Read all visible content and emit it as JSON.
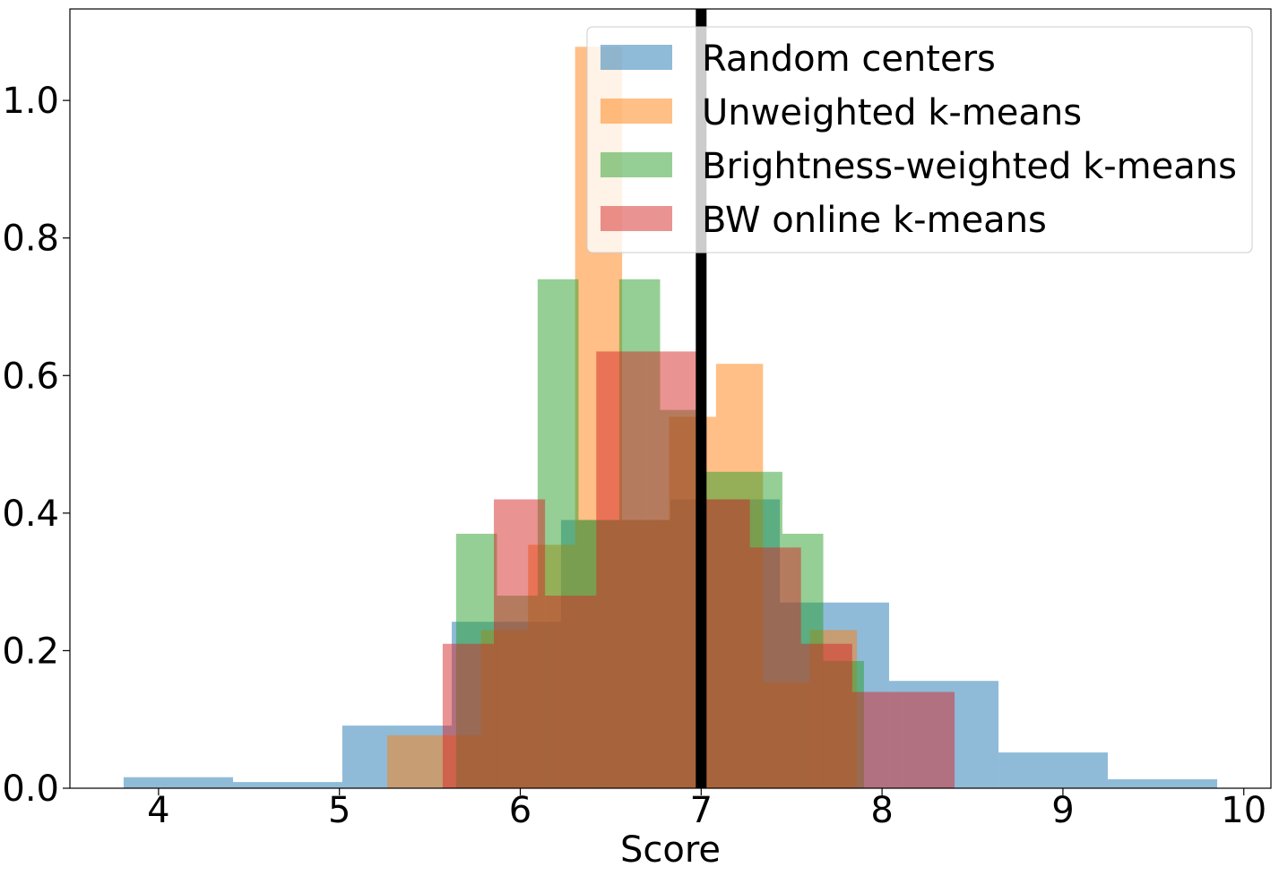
{
  "chart_data": {
    "type": "histogram",
    "xlabel": "Score",
    "xlim": [
      3.51,
      10.15
    ],
    "ylim": [
      0,
      1.133
    ],
    "xticks": [
      4,
      5,
      6,
      7,
      8,
      9,
      10
    ],
    "yticks": [
      {
        "value": 0,
        "label": "0.0"
      },
      {
        "value": 0.2,
        "label": "0.2"
      },
      {
        "value": 0.4,
        "label": "0.4"
      },
      {
        "value": 0.6,
        "label": "0.6"
      },
      {
        "value": 0.8,
        "label": "0.8"
      },
      {
        "value": 1.0,
        "label": "1.0"
      }
    ],
    "alpha": 0.5,
    "vline": 7,
    "vline_color": "#000000",
    "legend": "upper right",
    "series": [
      {
        "name": "Random centers",
        "color": "#1f77b4",
        "bins": [
          3.807,
          4.412,
          5.016,
          5.621,
          6.225,
          6.83,
          7.435,
          8.039,
          8.644,
          9.248,
          9.853
        ],
        "values": [
          0.016,
          0.009,
          0.091,
          0.242,
          0.39,
          0.42,
          0.27,
          0.156,
          0.052,
          0.013
        ]
      },
      {
        "name": "Unweighted k-means",
        "color": "#ff7f0e",
        "bins": [
          5.264,
          5.524,
          5.783,
          6.043,
          6.303,
          6.563,
          6.822,
          7.082,
          7.342,
          7.601,
          7.861
        ],
        "values": [
          0.077,
          0.077,
          0.23,
          0.354,
          1.078,
          0.39,
          0.54,
          0.617,
          0.154,
          0.23
        ]
      },
      {
        "name": "Brightness-weighted k-means",
        "color": "#2ca02c",
        "bins": [
          5.645,
          5.871,
          6.096,
          6.322,
          6.547,
          6.773,
          6.998,
          7.224,
          7.449,
          7.675,
          7.9
        ],
        "values": [
          0.37,
          0.28,
          0.74,
          0.39,
          0.74,
          0.55,
          0.46,
          0.46,
          0.37,
          0.185
        ]
      },
      {
        "name": "BW online k-means",
        "color": "#d62728",
        "bins": [
          5.571,
          5.854,
          6.137,
          6.42,
          6.703,
          6.986,
          7.269,
          7.552,
          7.835,
          8.118,
          8.401
        ],
        "values": [
          0.21,
          0.42,
          0.28,
          0.635,
          0.635,
          0.42,
          0.35,
          0.21,
          0.14,
          0.14
        ]
      }
    ]
  }
}
